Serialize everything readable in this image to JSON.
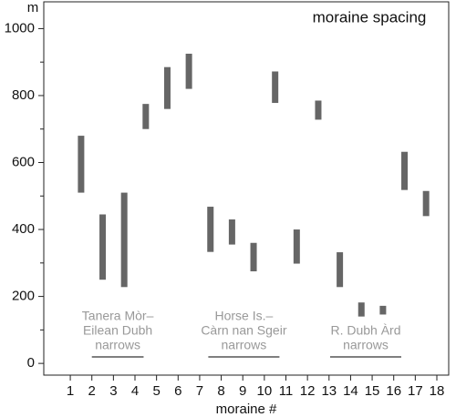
{
  "chart_data": {
    "type": "range-bar",
    "title": "moraine spacing",
    "y_label": "m",
    "x_label": "moraine #",
    "x": [
      1.5,
      2.5,
      3.5,
      4.5,
      5.5,
      6.5,
      7.5,
      8.5,
      9.5,
      10.5,
      11.5,
      12.5,
      13.5,
      14.5,
      15.5,
      16.5,
      17.5
    ],
    "ranges": [
      [
        510,
        680
      ],
      [
        250,
        445
      ],
      [
        228,
        510
      ],
      [
        700,
        775
      ],
      [
        760,
        885
      ],
      [
        820,
        925
      ],
      [
        333,
        468
      ],
      [
        355,
        430
      ],
      [
        275,
        360
      ],
      [
        778,
        872
      ],
      [
        298,
        400
      ],
      [
        728,
        785
      ],
      [
        228,
        332
      ],
      [
        140,
        182
      ],
      [
        146,
        172
      ],
      [
        518,
        632
      ],
      [
        440,
        515
      ]
    ],
    "color": "#666666",
    "xlim": [
      -0.23,
      18.55
    ],
    "xticks": [
      1,
      2,
      3,
      4,
      5,
      6,
      7,
      8,
      9,
      10,
      11,
      12,
      13,
      14,
      15,
      16,
      17,
      18
    ],
    "ylim": [
      -35,
      1080
    ],
    "yticks": [
      0,
      200,
      400,
      600,
      800,
      1000
    ],
    "yticks_minor": [
      100,
      300,
      500,
      700,
      900
    ],
    "annotations": [
      {
        "lines": [
          "Tanera Mòr–",
          "Eilean Dubh",
          "narrows"
        ],
        "x_range": [
          2,
          4.4
        ]
      },
      {
        "lines": [
          "Horse Is.–",
          "Càrn nan Sgeir",
          "narrows"
        ],
        "x_range": [
          7.4,
          10.7
        ]
      },
      {
        "lines": [
          "R. Dubh Àrd",
          "narrows"
        ],
        "x_range": [
          13.05,
          16.35
        ]
      }
    ]
  }
}
